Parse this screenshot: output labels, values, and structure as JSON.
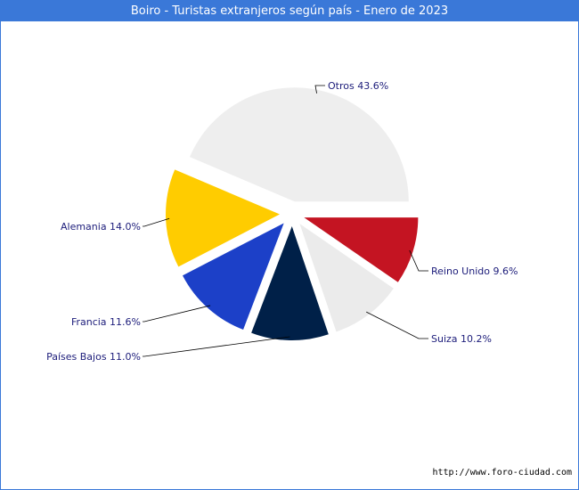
{
  "header": {
    "title": "Boiro - Turistas extranjeros según país - Enero de 2023"
  },
  "footer": {
    "url": "http://www.foro-ciudad.com"
  },
  "chart_data": {
    "type": "pie",
    "title": "Boiro - Turistas extranjeros según país - Enero de 2023",
    "slices": [
      {
        "label": "Reino Unido 9.6%",
        "value": 9.6,
        "color": "#c41422"
      },
      {
        "label": "Suiza 10.2%",
        "value": 10.2,
        "color": "#ebebeb"
      },
      {
        "label": "Países Bajos 11.0%",
        "value": 11.0,
        "color": "#002048"
      },
      {
        "label": "Francia 11.6%",
        "value": 11.6,
        "color": "#1c40c8"
      },
      {
        "label": "Alemania 14.0%",
        "value": 14.0,
        "color": "#ffcc00"
      },
      {
        "label": "Otros 43.6%",
        "value": 43.6,
        "color": "#eeeeee"
      }
    ]
  }
}
